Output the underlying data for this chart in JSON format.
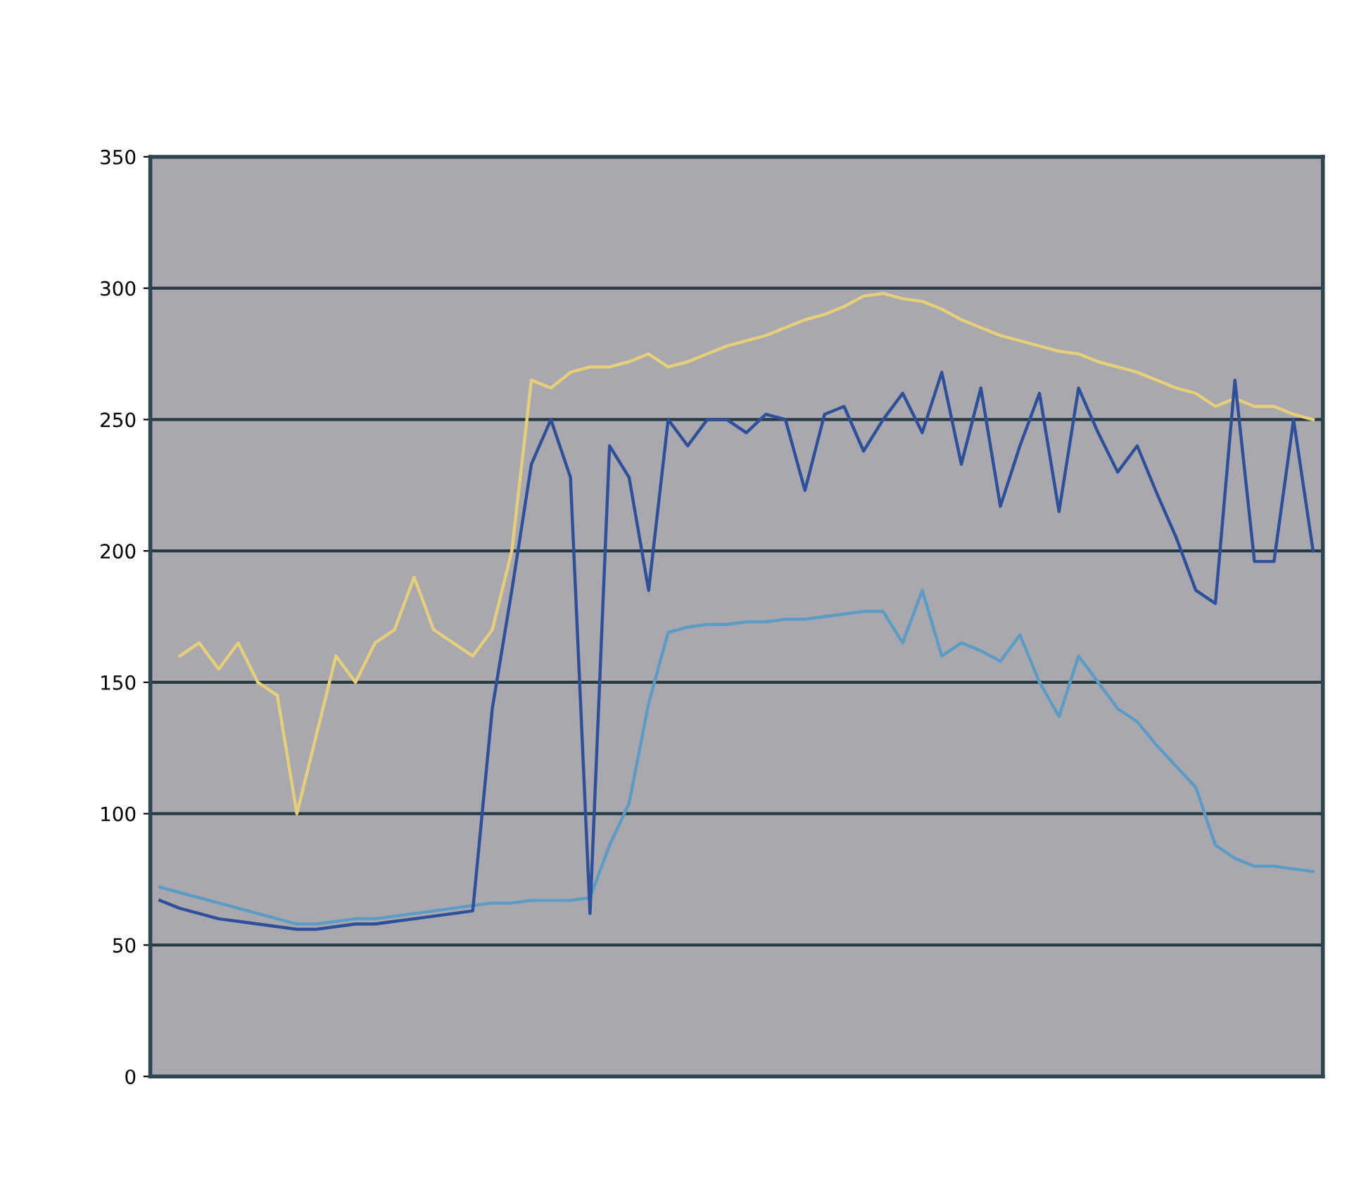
{
  "chart_data": {
    "type": "line",
    "categories": [
      null,
      null,
      null,
      null,
      null,
      null,
      null,
      null,
      null,
      null,
      null,
      null,
      null,
      null,
      null,
      null,
      null,
      null,
      null,
      null,
      null,
      null,
      null,
      null,
      null,
      null,
      null,
      null,
      null,
      null,
      null,
      null,
      null,
      null,
      null,
      null,
      null,
      null,
      null,
      null,
      null,
      null,
      null,
      null,
      null,
      null,
      null,
      null,
      null,
      null,
      null,
      null,
      null,
      null,
      null,
      null,
      null,
      null,
      null,
      null
    ],
    "series": [
      {
        "color": "#e6cf7a",
        "values": [
          null,
          160,
          165,
          155,
          165,
          150,
          145,
          100,
          130,
          160,
          150,
          165,
          170,
          190,
          170,
          165,
          160,
          170,
          200,
          265,
          262,
          268,
          270,
          270,
          272,
          275,
          270,
          272,
          275,
          278,
          280,
          282,
          285,
          288,
          290,
          293,
          297,
          298,
          296,
          295,
          292,
          288,
          285,
          282,
          280,
          278,
          276,
          275,
          272,
          270,
          268,
          265,
          262,
          260,
          255,
          258,
          255,
          255,
          252,
          250
        ]
      },
      {
        "color": "#5c9cc4",
        "values": [
          72,
          70,
          68,
          66,
          64,
          62,
          60,
          58,
          58,
          59,
          60,
          60,
          61,
          62,
          63,
          64,
          65,
          66,
          66,
          67,
          67,
          67,
          68,
          88,
          104,
          142,
          169,
          171,
          172,
          172,
          173,
          173,
          174,
          174,
          175,
          176,
          177,
          177,
          165,
          185,
          160,
          165,
          162,
          158,
          168,
          150,
          137,
          160,
          150,
          140,
          135,
          126,
          118,
          110,
          88,
          83,
          80,
          80,
          79,
          78
        ]
      },
      {
        "color": "#2e4f9a",
        "values": [
          67,
          64,
          62,
          60,
          59,
          58,
          57,
          56,
          56,
          57,
          58,
          58,
          59,
          60,
          61,
          62,
          63,
          140,
          185,
          233,
          250,
          228,
          62,
          240,
          228,
          185,
          250,
          240,
          250,
          250,
          245,
          252,
          250,
          223,
          252,
          255,
          238,
          250,
          260,
          245,
          268,
          233,
          262,
          217,
          240,
          260,
          215,
          262,
          245,
          230,
          240,
          222,
          205,
          185,
          180,
          265,
          196,
          196,
          250,
          200
        ]
      }
    ],
    "ylim": [
      0,
      350
    ],
    "yticks": [
      0,
      50,
      100,
      150,
      200,
      250,
      300,
      350
    ],
    "grid": "y",
    "marker": "none",
    "line_style": "solid"
  }
}
